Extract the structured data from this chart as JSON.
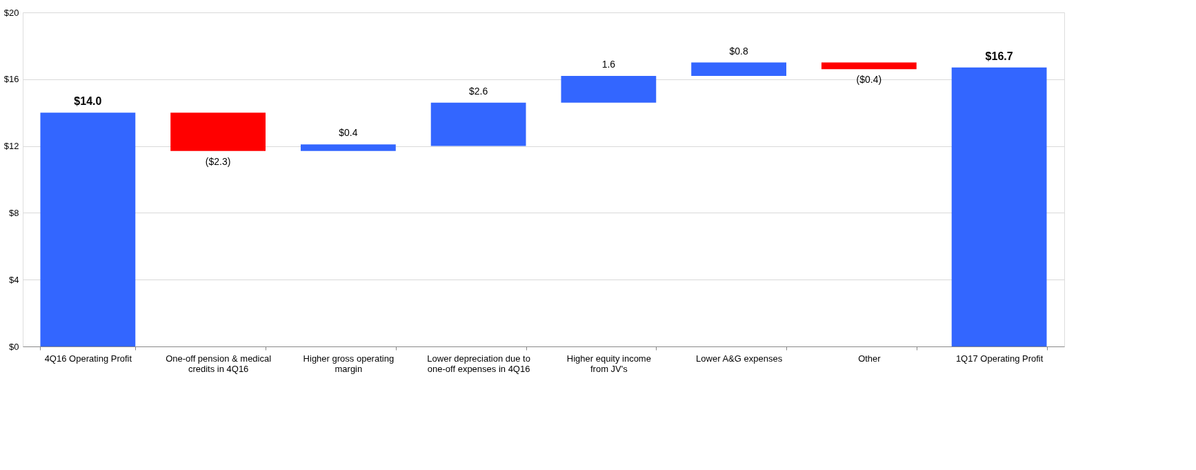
{
  "chart_data": {
    "type": "bar",
    "categories": [
      "4Q16 Operating Profit",
      "One-off pension & medical\ncredits in 4Q16",
      "Higher gross operating\nmargin",
      "Lower depreciation due to\none-off expenses in 4Q16",
      "Higher equity income\nfrom JV's",
      "Lower A&G expenses",
      "Other",
      "1Q17 Operating Profit"
    ],
    "values": [
      14.0,
      -2.3,
      0.4,
      2.6,
      1.6,
      0.8,
      -0.4,
      16.7
    ],
    "base": [
      0,
      14.0,
      11.7,
      12.0,
      14.6,
      16.2,
      17.0,
      0
    ],
    "colors": [
      "#3366ff",
      "#ff0000",
      "#3366ff",
      "#3366ff",
      "#3366ff",
      "#3366ff",
      "#ff0000",
      "#3366ff"
    ],
    "value_labels": [
      "$14.0",
      "($2.3)",
      "$0.4",
      "$2.6",
      "1.6",
      "$0.8",
      "($0.4)",
      "$16.7"
    ],
    "ylim": [
      0,
      20
    ],
    "yticks": [
      {
        "value": 0,
        "label": "$0"
      },
      {
        "value": 4,
        "label": "$4"
      },
      {
        "value": 8,
        "label": "$8"
      },
      {
        "value": 12,
        "label": "$12"
      },
      {
        "value": 16,
        "label": "$16"
      },
      {
        "value": 20,
        "label": "$20"
      }
    ],
    "grid": "y"
  }
}
